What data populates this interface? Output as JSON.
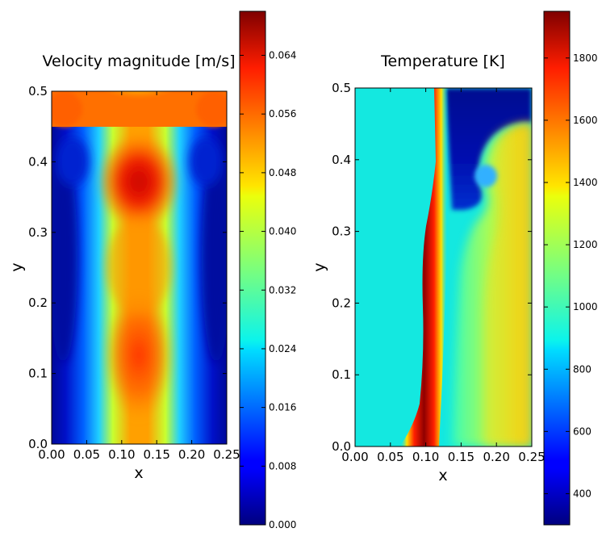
{
  "chart_data": [
    {
      "type": "heatmap",
      "title": "Velocity magnitude [m/s]",
      "xlabel": "x",
      "ylabel": "y",
      "xlim": [
        0.0,
        0.25
      ],
      "ylim": [
        0.0,
        0.5
      ],
      "xticks": [
        "0.00",
        "0.05",
        "0.10",
        "0.15",
        "0.20",
        "0.25"
      ],
      "yticks": [
        "0.0",
        "0.1",
        "0.2",
        "0.3",
        "0.4",
        "0.5"
      ],
      "colormap": "jet",
      "colorbar_range": [
        0.0,
        0.07
      ],
      "colorbar_ticks": [
        "0.000",
        "0.008",
        "0.016",
        "0.024",
        "0.032",
        "0.040",
        "0.048",
        "0.056",
        "0.064"
      ]
    },
    {
      "type": "heatmap",
      "title": "Temperature [K]",
      "xlabel": "x",
      "ylabel": "y",
      "xlim": [
        0.0,
        0.25
      ],
      "ylim": [
        0.0,
        0.5
      ],
      "xticks": [
        "0.00",
        "0.05",
        "0.10",
        "0.15",
        "0.20",
        "0.25"
      ],
      "yticks": [
        "0.0",
        "0.1",
        "0.2",
        "0.3",
        "0.4",
        "0.5"
      ],
      "colormap": "jet",
      "colorbar_range": [
        300,
        1950
      ],
      "colorbar_ticks": [
        "400",
        "600",
        "800",
        "1000",
        "1200",
        "1400",
        "1600",
        "1800"
      ]
    }
  ]
}
